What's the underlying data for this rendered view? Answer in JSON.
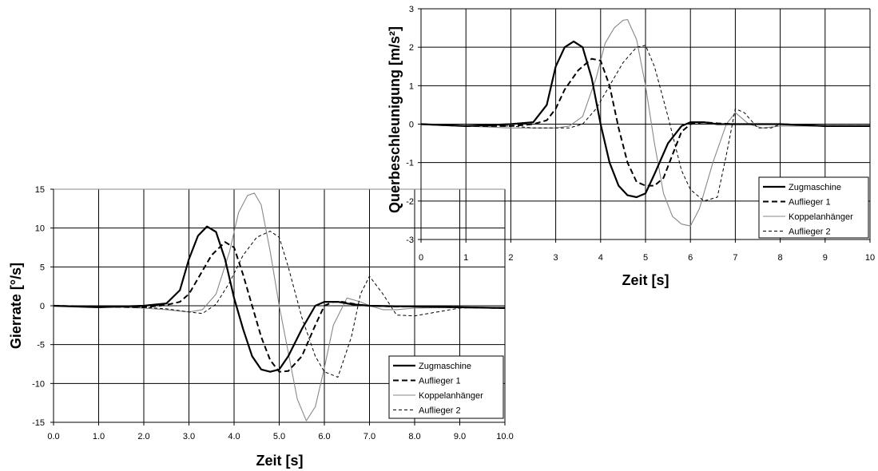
{
  "chart_data": [
    {
      "id": "gierrate",
      "type": "line",
      "xlabel": "Zeit [s]",
      "ylabel": "Gierrate [°/s]",
      "xlim": [
        0,
        10
      ],
      "ylim": [
        -15,
        15
      ],
      "xticks": [
        "0.0",
        "1.0",
        "2.0",
        "3.0",
        "4.0",
        "5.0",
        "6.0",
        "7.0",
        "8.0",
        "9.0",
        "10.0"
      ],
      "yticks": [
        "15",
        "10",
        "5",
        "0",
        "-5",
        "-10",
        "-15"
      ],
      "grid": true,
      "legend_position": "bottom-right",
      "series": [
        {
          "name": "Zugmaschine",
          "style": "solid-thick",
          "color": "#000000",
          "x": [
            0,
            1,
            2,
            2.5,
            2.8,
            3.0,
            3.2,
            3.4,
            3.6,
            3.8,
            4.0,
            4.2,
            4.4,
            4.6,
            4.8,
            5.0,
            5.2,
            5.5,
            5.8,
            6.0,
            6.3,
            6.6,
            7.0,
            8,
            9,
            10
          ],
          "y": [
            0,
            -0.2,
            0,
            0.3,
            2,
            6,
            9,
            10.2,
            9.5,
            6,
            1,
            -3,
            -6.5,
            -8.2,
            -8.5,
            -8.2,
            -6.5,
            -3,
            0,
            0.5,
            0.5,
            0.2,
            0,
            -0.1,
            -0.2,
            -0.3
          ]
        },
        {
          "name": "Auflieger 1",
          "style": "dashed-thick",
          "color": "#000000",
          "x": [
            0,
            1,
            2,
            2.5,
            2.8,
            3.0,
            3.2,
            3.5,
            3.8,
            4.0,
            4.2,
            4.4,
            4.6,
            4.8,
            5.0,
            5.2,
            5.5,
            5.8,
            6.0,
            6.2,
            6.4,
            6.6,
            6.8,
            7.0,
            7.5,
            8,
            9,
            10
          ],
          "y": [
            0,
            -0.1,
            -0.2,
            0.1,
            0.5,
            1.5,
            3.5,
            6.5,
            8.2,
            7.5,
            4,
            0,
            -4,
            -7,
            -8.5,
            -8.4,
            -6.5,
            -2.5,
            0,
            0.5,
            0.5,
            0.3,
            0.1,
            0,
            -0.1,
            -0.1,
            -0.2,
            -0.3
          ]
        },
        {
          "name": "Koppelanhänger",
          "style": "solid-thin",
          "color": "#888888",
          "x": [
            0,
            1,
            2,
            2.5,
            3.0,
            3.3,
            3.6,
            3.9,
            4.1,
            4.3,
            4.45,
            4.6,
            4.8,
            5.0,
            5.2,
            5.4,
            5.6,
            5.8,
            6.0,
            6.2,
            6.5,
            6.8,
            7.0,
            7.3,
            7.6,
            8,
            9,
            10
          ],
          "y": [
            0,
            -0.1,
            -0.3,
            -0.5,
            -0.8,
            -0.5,
            1.5,
            7,
            12,
            14.2,
            14.5,
            13,
            7,
            0,
            -6,
            -12,
            -14.8,
            -13,
            -8,
            -2.5,
            1,
            0.5,
            0,
            -0.5,
            -0.5,
            -0.3,
            -0.2,
            -0.2
          ]
        },
        {
          "name": "Auflieger 2",
          "style": "dashed-thin",
          "color": "#000000",
          "x": [
            0,
            1,
            2,
            2.5,
            3.0,
            3.3,
            3.6,
            3.9,
            4.2,
            4.5,
            4.8,
            5.0,
            5.2,
            5.5,
            5.8,
            6.0,
            6.3,
            6.6,
            6.8,
            7.0,
            7.3,
            7.6,
            8,
            9,
            10
          ],
          "y": [
            0,
            -0.1,
            -0.2,
            -0.4,
            -0.8,
            -1.0,
            0.2,
            3,
            6.5,
            8.8,
            9.6,
            8.8,
            5,
            -1.5,
            -6.5,
            -8.5,
            -9.2,
            -4,
            1.5,
            3.8,
            1.5,
            -1.2,
            -1.3,
            -0.3,
            -0.2
          ]
        }
      ]
    },
    {
      "id": "querbeschleunigung",
      "type": "line",
      "xlabel": "Zeit [s]",
      "ylabel": "Querbeschleunigung [m/s²]",
      "xlim": [
        0,
        10
      ],
      "ylim": [
        -3,
        3
      ],
      "xticks": [
        "0",
        "1",
        "2",
        "3",
        "4",
        "5",
        "6",
        "7",
        "8",
        "9",
        "10"
      ],
      "yticks": [
        "3",
        "2",
        "1",
        "0",
        "-1",
        "-2",
        "-3"
      ],
      "grid": true,
      "legend_position": "bottom-right",
      "series": [
        {
          "name": "Zugmaschine",
          "style": "solid-thick",
          "color": "#000000",
          "x": [
            0,
            1,
            2,
            2.5,
            2.8,
            3.0,
            3.2,
            3.4,
            3.6,
            3.8,
            4.0,
            4.2,
            4.4,
            4.6,
            4.8,
            5.0,
            5.2,
            5.5,
            5.8,
            6.0,
            6.3,
            6.6,
            7,
            8,
            9,
            10
          ],
          "y": [
            0,
            -0.05,
            0,
            0.05,
            0.5,
            1.5,
            2.0,
            2.15,
            2.0,
            1.2,
            0,
            -1.0,
            -1.6,
            -1.85,
            -1.9,
            -1.8,
            -1.3,
            -0.5,
            -0.05,
            0.05,
            0.05,
            0,
            0,
            0,
            -0.05,
            -0.05
          ]
        },
        {
          "name": "Auflieger 1",
          "style": "dashed-thick",
          "color": "#000000",
          "x": [
            0,
            1,
            2,
            2.5,
            2.8,
            3.0,
            3.2,
            3.5,
            3.8,
            4.0,
            4.2,
            4.4,
            4.6,
            4.8,
            5.0,
            5.2,
            5.4,
            5.6,
            5.8,
            6.0,
            6.3,
            6.6,
            7,
            8,
            9,
            10
          ],
          "y": [
            0,
            -0.05,
            -0.05,
            0,
            0.1,
            0.4,
            0.9,
            1.4,
            1.7,
            1.65,
            1.0,
            -0.1,
            -1.0,
            -1.5,
            -1.6,
            -1.6,
            -1.4,
            -0.8,
            -0.2,
            0,
            0.05,
            0.02,
            0,
            0,
            -0.05,
            -0.05
          ]
        },
        {
          "name": "Koppelanhänger",
          "style": "solid-thin",
          "color": "#888888",
          "x": [
            0,
            1,
            2,
            2.5,
            3.0,
            3.3,
            3.6,
            3.9,
            4.1,
            4.3,
            4.5,
            4.6,
            4.8,
            5.0,
            5.2,
            5.4,
            5.6,
            5.8,
            6.0,
            6.2,
            6.5,
            6.8,
            7.0,
            7.3,
            7.6,
            8,
            9,
            10
          ],
          "y": [
            0,
            -0.05,
            -0.1,
            -0.1,
            -0.1,
            -0.05,
            0.2,
            1.2,
            2.1,
            2.5,
            2.7,
            2.72,
            2.2,
            1.0,
            -0.5,
            -1.8,
            -2.4,
            -2.6,
            -2.65,
            -2.2,
            -1.0,
            0,
            0.3,
            0,
            -0.1,
            -0.05,
            -0.05,
            -0.05
          ]
        },
        {
          "name": "Auflieger 2",
          "style": "dashed-thin",
          "color": "#000000",
          "x": [
            0,
            1,
            2,
            2.5,
            3.0,
            3.3,
            3.6,
            3.9,
            4.2,
            4.5,
            4.8,
            5.0,
            5.2,
            5.5,
            5.8,
            6.0,
            6.3,
            6.6,
            6.8,
            7.0,
            7.2,
            7.5,
            7.8,
            8,
            9,
            10
          ],
          "y": [
            0,
            -0.05,
            -0.05,
            -0.1,
            -0.1,
            -0.1,
            0,
            0.4,
            1.0,
            1.6,
            2.0,
            2.05,
            1.5,
            0.2,
            -1.2,
            -1.7,
            -2.0,
            -1.9,
            -0.8,
            0.4,
            0.3,
            -0.1,
            -0.1,
            0,
            -0.05,
            -0.05
          ]
        }
      ]
    }
  ]
}
